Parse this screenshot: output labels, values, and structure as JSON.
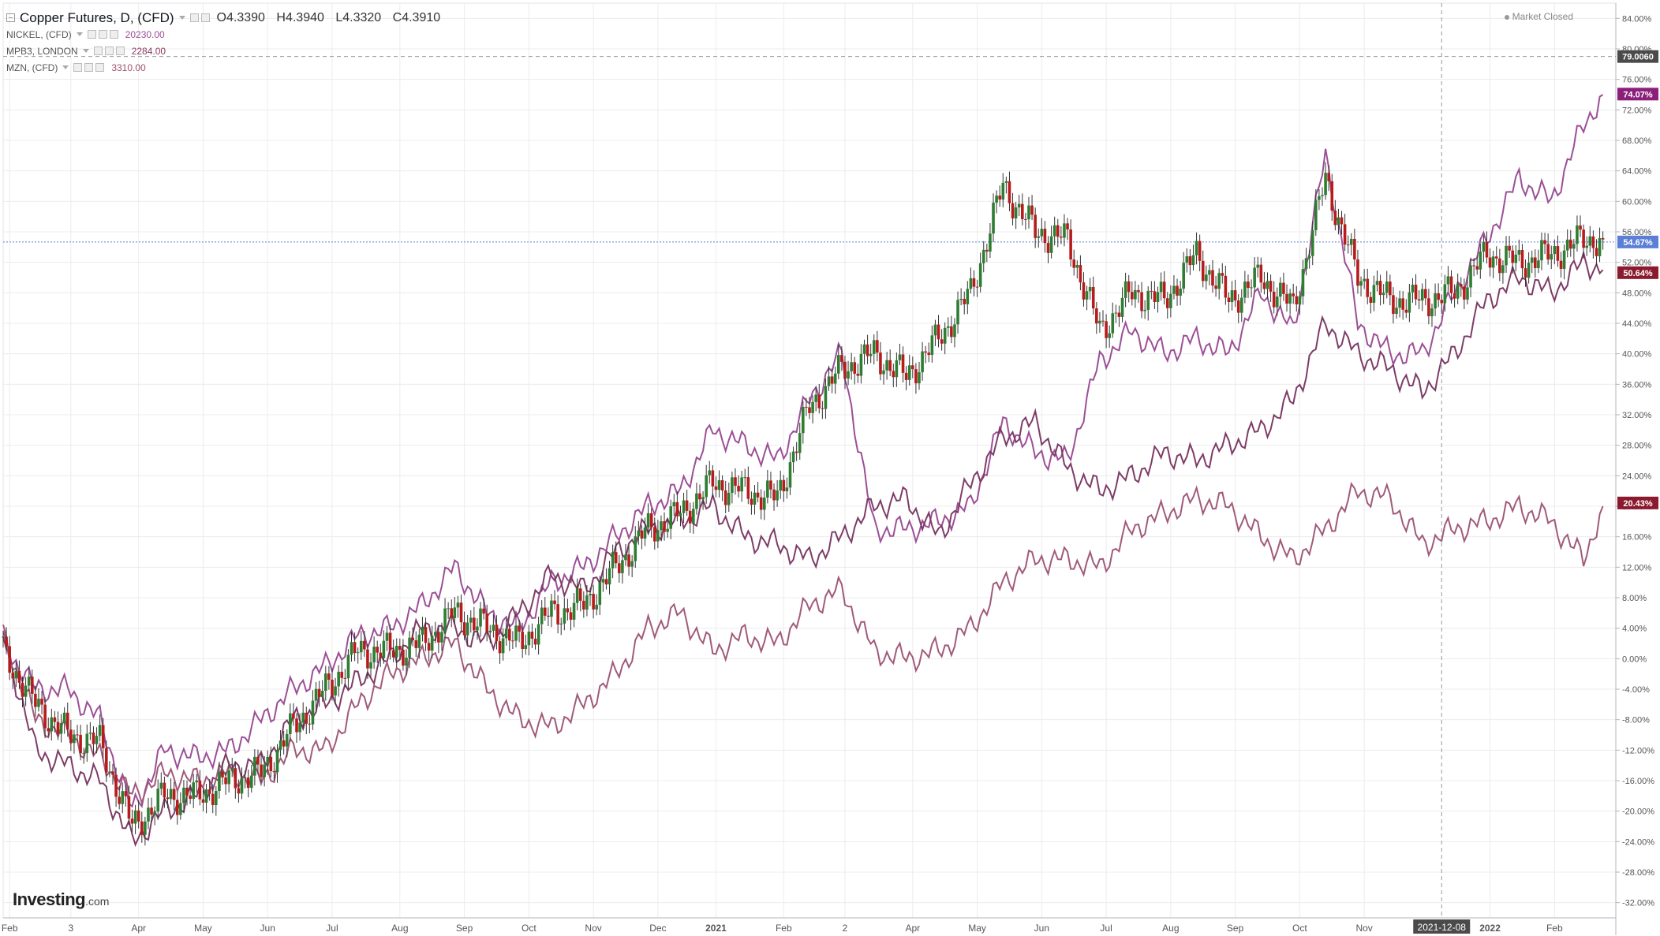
{
  "legend": {
    "main": {
      "title": "Copper Futures, D, (CFD)",
      "open": "O4.3390",
      "high": "H4.3940",
      "low": "L4.3320",
      "close": "C4.3910"
    },
    "subs": [
      {
        "name": "NICKEL, (CFD)",
        "value": "20230.00",
        "color": "#9b4f96"
      },
      {
        "name": "MPB3, LONDON",
        "value": "2284.00",
        "color": "#8b3a62"
      },
      {
        "name": "MZN, (CFD)",
        "value": "3310.00",
        "color": "#a05070"
      }
    ]
  },
  "status": {
    "market": "Market Closed"
  },
  "logo": {
    "main": "Investing",
    "suffix": ".com"
  },
  "colors": {
    "up": "#2e7d32",
    "down": "#b71c1c",
    "nickel": "#9b4f96",
    "lead": "#7d3c67",
    "zinc": "#a05a7a",
    "current": "#5b7fd6",
    "grid": "#ececec",
    "axis": "#b2b5be"
  },
  "chart_data": {
    "type": "line",
    "title": "Copper Futures, D, (CFD)",
    "xlabel": "",
    "ylabel": "",
    "ylim": [
      -34,
      86
    ],
    "grid": true,
    "y_ticks": [
      "84.00%",
      "80.00%",
      "76.00%",
      "72.00%",
      "68.00%",
      "64.00%",
      "60.00%",
      "56.00%",
      "52.00%",
      "48.00%",
      "44.00%",
      "40.00%",
      "36.00%",
      "32.00%",
      "28.00%",
      "24.00%",
      "20.00%",
      "16.00%",
      "12.00%",
      "8.00%",
      "4.00%",
      "0.00%",
      "-4.00%",
      "-8.00%",
      "-12.00%",
      "-16.00%",
      "-20.00%",
      "-24.00%",
      "-28.00%",
      "-32.00%"
    ],
    "x_ticks": [
      {
        "label": "Feb",
        "t": 0.1
      },
      {
        "label": "3",
        "t": 1.05
      },
      {
        "label": "Apr",
        "t": 2.1
      },
      {
        "label": "May",
        "t": 3.1
      },
      {
        "label": "Jun",
        "t": 4.1
      },
      {
        "label": "Jul",
        "t": 5.1
      },
      {
        "label": "Aug",
        "t": 6.15
      },
      {
        "label": "Sep",
        "t": 7.15
      },
      {
        "label": "Oct",
        "t": 8.15
      },
      {
        "label": "Nov",
        "t": 9.15
      },
      {
        "label": "Dec",
        "t": 10.15
      },
      {
        "label": "2021",
        "t": 11.05
      },
      {
        "label": "Feb",
        "t": 12.1
      },
      {
        "label": "2",
        "t": 13.05
      },
      {
        "label": "Apr",
        "t": 14.1
      },
      {
        "label": "May",
        "t": 15.1
      },
      {
        "label": "Jun",
        "t": 16.1
      },
      {
        "label": "Jul",
        "t": 17.1
      },
      {
        "label": "Aug",
        "t": 18.1
      },
      {
        "label": "Sep",
        "t": 19.1
      },
      {
        "label": "Oct",
        "t": 20.1
      },
      {
        "label": "Nov",
        "t": 21.1
      },
      {
        "label": "2022",
        "t": 23.05
      },
      {
        "label": "Feb",
        "t": 24.05
      }
    ],
    "crosshair": {
      "label": "2021-12-08",
      "t": 22.3,
      "value": "79.0060",
      "y": 79.0
    },
    "last_labels": [
      {
        "text": "74.07%",
        "y": 74.07,
        "color": "#8b1f7a"
      },
      {
        "text": "54.67%",
        "y": 54.67,
        "color": "#5b7fd6"
      },
      {
        "text": "50.64%",
        "y": 50.64,
        "color": "#8b1a2e"
      },
      {
        "text": "20.43%",
        "y": 20.43,
        "color": "#8b1a2e"
      }
    ],
    "current_line": 54.67,
    "x_range": [
      0,
      25
    ],
    "series": [
      {
        "name": "Copper Futures, D, (CFD)",
        "kind": "candles",
        "color": "#2e7d32",
        "x": [
          0,
          0.5,
          1,
          1.5,
          2,
          2.5,
          3,
          3.5,
          4,
          4.5,
          5,
          5.5,
          6,
          6.5,
          7,
          7.5,
          8,
          8.5,
          9,
          9.5,
          10,
          10.5,
          11,
          11.5,
          12,
          12.5,
          13,
          13.5,
          14,
          14.5,
          15,
          15.5,
          16,
          16.5,
          17,
          17.5,
          18,
          18.5,
          19,
          19.5,
          20,
          20.5,
          21,
          21.5,
          22,
          22.5,
          23,
          23.5,
          24,
          24.5,
          24.8
        ],
        "y": [
          1,
          -6,
          -10,
          -11,
          -22,
          -18,
          -18,
          -16,
          -15,
          -9,
          -4,
          1,
          1,
          2,
          6,
          4,
          2,
          6,
          7,
          12,
          17,
          19,
          23,
          22,
          21,
          33,
          38,
          40,
          37,
          42,
          48,
          62,
          56,
          55,
          43,
          48,
          47,
          53,
          47,
          50,
          46,
          63,
          50,
          47,
          47,
          48,
          53,
          52,
          53,
          55,
          55
        ]
      },
      {
        "name": "NICKEL, (CFD)",
        "color": "#9b4f96",
        "x": [
          0,
          0.5,
          1,
          1.5,
          2,
          2.5,
          3,
          3.5,
          4,
          4.5,
          5,
          5.5,
          6,
          6.5,
          7,
          7.5,
          8,
          8.5,
          9,
          9.5,
          10,
          10.5,
          11,
          11.5,
          12,
          12.5,
          13,
          13.5,
          14,
          14.5,
          15,
          15.5,
          16,
          16.5,
          17,
          17.5,
          18,
          18.5,
          19,
          19.5,
          20,
          20.5,
          21,
          21.5,
          22,
          22.5,
          23,
          23.5,
          24,
          24.5,
          24.8
        ],
        "y": [
          2,
          -4,
          -4,
          -8,
          -20,
          -12,
          -13,
          -12,
          -8,
          -4,
          -1,
          3,
          4,
          7,
          12,
          6,
          4,
          10,
          12,
          16,
          20,
          22,
          30,
          28,
          26,
          34,
          40,
          17,
          17,
          18,
          20,
          31,
          27,
          26,
          39,
          43,
          40,
          42,
          40,
          48,
          43,
          66,
          44,
          40,
          40,
          48,
          55,
          63,
          60,
          70,
          74
        ]
      },
      {
        "name": "MPB3, LONDON",
        "color": "#7d3c67",
        "x": [
          0,
          0.5,
          1,
          1.5,
          2,
          2.5,
          3,
          3.5,
          4,
          4.5,
          5,
          5.5,
          6,
          6.5,
          7,
          7.5,
          8,
          8.5,
          9,
          9.5,
          10,
          10.5,
          11,
          11.5,
          12,
          12.5,
          13,
          13.5,
          14,
          14.5,
          15,
          15.5,
          16,
          16.5,
          17,
          17.5,
          18,
          18.5,
          19,
          19.5,
          20,
          20.5,
          21,
          21.5,
          22,
          22.5,
          23,
          23.5,
          24,
          24.5,
          24.8
        ],
        "y": [
          3,
          -12,
          -14,
          -16,
          -24,
          -20,
          -18,
          -14,
          -14,
          -8,
          -6,
          -3,
          0,
          4,
          4,
          2,
          6,
          11,
          9,
          14,
          17,
          18,
          20,
          16,
          15,
          13,
          16,
          20,
          21,
          16,
          23,
          29,
          31,
          25,
          22,
          24,
          27,
          26,
          28,
          30,
          34,
          44,
          40,
          38,
          35,
          40,
          47,
          50,
          48,
          52,
          51
        ]
      },
      {
        "name": "MZN, (CFD)",
        "color": "#a05a7a",
        "x": [
          0,
          0.5,
          1,
          1.5,
          2,
          2.5,
          3,
          3.5,
          4,
          4.5,
          5,
          5.5,
          6,
          6.5,
          7,
          7.5,
          8,
          8.5,
          9,
          9.5,
          10,
          10.5,
          11,
          11.5,
          12,
          12.5,
          13,
          13.5,
          14,
          14.5,
          15,
          15.5,
          16,
          16.5,
          17,
          17.5,
          18,
          18.5,
          19,
          19.5,
          20,
          20.5,
          21,
          21.5,
          22,
          22.5,
          23,
          23.5,
          24,
          24.5,
          24.8
        ],
        "y": [
          3,
          -8,
          -10,
          -13,
          -18,
          -15,
          -16,
          -15,
          -16,
          -12,
          -12,
          -6,
          -2,
          0,
          2,
          -4,
          -8,
          -9,
          -6,
          -2,
          4,
          6,
          1,
          3,
          2,
          7,
          9,
          1,
          0,
          1,
          4,
          10,
          13,
          13,
          12,
          17,
          19,
          21,
          20,
          16,
          13,
          17,
          22,
          21,
          15,
          17,
          18,
          20,
          18,
          13,
          20
        ]
      }
    ]
  }
}
